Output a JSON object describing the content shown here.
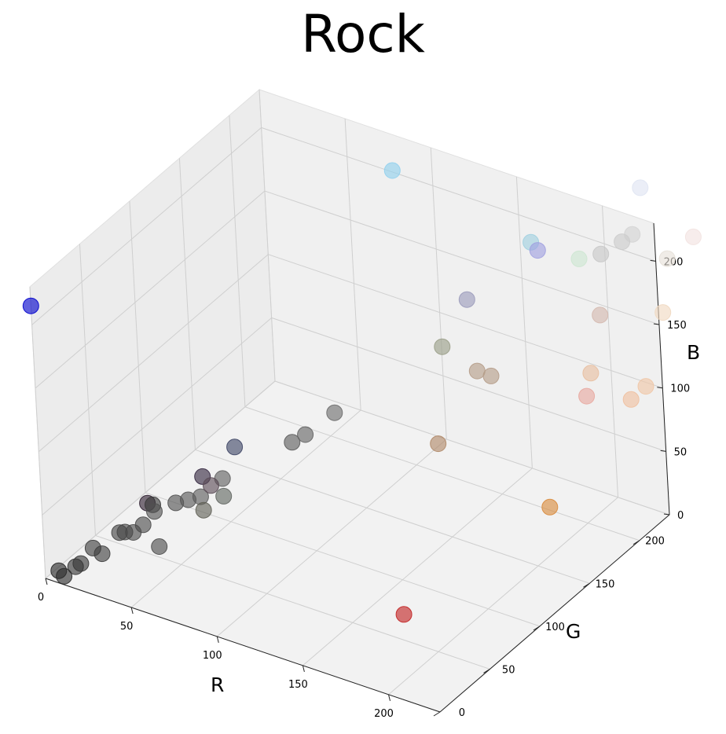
{
  "chart_data": {
    "type": "scatter",
    "projection": "3d",
    "title": "Rock",
    "xlabel": "R",
    "ylabel": "G",
    "zlabel": "B",
    "xlim": [
      0,
      230
    ],
    "ylim": [
      0,
      230
    ],
    "zlim": [
      0,
      230
    ],
    "xticks": [
      0,
      50,
      100,
      150,
      200
    ],
    "yticks": [
      0,
      50,
      100,
      150,
      200
    ],
    "zticks": [
      0,
      50,
      100,
      150,
      200
    ],
    "grid": true,
    "points": [
      {
        "r": 5,
        "g": 5,
        "b": 5,
        "color": "#262626"
      },
      {
        "r": 8,
        "g": 5,
        "b": 2,
        "color": "#2b2b2b"
      },
      {
        "r": 12,
        "g": 10,
        "b": 8,
        "color": "#333333"
      },
      {
        "r": 14,
        "g": 12,
        "b": 10,
        "color": "#363636"
      },
      {
        "r": 18,
        "g": 18,
        "b": 20,
        "color": "#3b3b3b"
      },
      {
        "r": 22,
        "g": 20,
        "b": 16,
        "color": "#3d3d3d"
      },
      {
        "r": 28,
        "g": 28,
        "b": 30,
        "color": "#424242"
      },
      {
        "r": 30,
        "g": 30,
        "b": 30,
        "color": "#454545"
      },
      {
        "r": 35,
        "g": 30,
        "b": 32,
        "color": "#484848"
      },
      {
        "r": 38,
        "g": 35,
        "b": 36,
        "color": "#4a4a4a"
      },
      {
        "r": 42,
        "g": 40,
        "b": 45,
        "color": "#505050"
      },
      {
        "r": 35,
        "g": 45,
        "b": 45,
        "color": "#2e1f30"
      },
      {
        "r": 40,
        "g": 42,
        "b": 48,
        "color": "#393939"
      },
      {
        "r": 45,
        "g": 38,
        "b": 20,
        "color": "#4a4a4a"
      },
      {
        "r": 50,
        "g": 48,
        "b": 50,
        "color": "#505050"
      },
      {
        "r": 55,
        "g": 52,
        "b": 52,
        "color": "#555555"
      },
      {
        "r": 60,
        "g": 56,
        "b": 54,
        "color": "#5a5a5a"
      },
      {
        "r": 62,
        "g": 55,
        "b": 45,
        "color": "#5f5f55"
      },
      {
        "r": 58,
        "g": 62,
        "b": 65,
        "color": "#33263f"
      },
      {
        "r": 64,
        "g": 60,
        "b": 62,
        "color": "#5a4b55"
      },
      {
        "r": 68,
        "g": 65,
        "b": 66,
        "color": "#5f5f5f"
      },
      {
        "r": 70,
        "g": 62,
        "b": 55,
        "color": "#606560"
      },
      {
        "r": 70,
        "g": 75,
        "b": 85,
        "color": "#3e4565"
      },
      {
        "r": 95,
        "g": 90,
        "b": 90,
        "color": "#5c5c5c"
      },
      {
        "r": 100,
        "g": 95,
        "b": 95,
        "color": "#626262"
      },
      {
        "r": 110,
        "g": 108,
        "b": 108,
        "color": "#6c6c6c"
      },
      {
        "r": 0,
        "g": 0,
        "b": 215,
        "color": "#0000cc"
      },
      {
        "r": 95,
        "g": 200,
        "b": 230,
        "color": "#90d0ee"
      },
      {
        "r": 150,
        "g": 150,
        "b": 150,
        "color": "#9a9e88"
      },
      {
        "r": 160,
        "g": 160,
        "b": 185,
        "color": "#9b9bbb"
      },
      {
        "r": 185,
        "g": 190,
        "b": 215,
        "color": "#a0a0e0"
      },
      {
        "r": 175,
        "g": 200,
        "b": 210,
        "color": "#a0d0e0"
      },
      {
        "r": 170,
        "g": 150,
        "b": 140,
        "color": "#b59c88"
      },
      {
        "r": 175,
        "g": 155,
        "b": 135,
        "color": "#b59c88"
      },
      {
        "r": 160,
        "g": 125,
        "b": 95,
        "color": "#b08868"
      },
      {
        "r": 200,
        "g": 205,
        "b": 205,
        "color": "#cde6d2"
      },
      {
        "r": 190,
        "g": 35,
        "b": 35,
        "color": "#c22222"
      },
      {
        "r": 215,
        "g": 140,
        "b": 60,
        "color": "#d98b3c"
      },
      {
        "r": 220,
        "g": 190,
        "b": 180,
        "color": "#d4b8ae"
      },
      {
        "r": 210,
        "g": 210,
        "b": 210,
        "color": "#c8c8c8"
      },
      {
        "r": 218,
        "g": 218,
        "b": 218,
        "color": "#cccccc"
      },
      {
        "r": 220,
        "g": 225,
        "b": 220,
        "color": "#d4d4d4"
      },
      {
        "r": 228,
        "g": 160,
        "b": 140,
        "color": "#e8a8a0"
      },
      {
        "r": 225,
        "g": 170,
        "b": 150,
        "color": "#e8bfa0"
      },
      {
        "r": 245,
        "g": 175,
        "b": 135,
        "color": "#f0c0a0"
      },
      {
        "r": 248,
        "g": 185,
        "b": 140,
        "color": "#f0c6a6"
      },
      {
        "r": 245,
        "g": 210,
        "b": 180,
        "color": "#f0d8c0"
      },
      {
        "r": 240,
        "g": 225,
        "b": 210,
        "color": "#e6e0d8"
      },
      {
        "r": 250,
        "g": 235,
        "b": 225,
        "color": "#f2e2e0"
      },
      {
        "r": 220,
        "g": 235,
        "b": 250,
        "color": "#dfe4f2"
      }
    ]
  }
}
